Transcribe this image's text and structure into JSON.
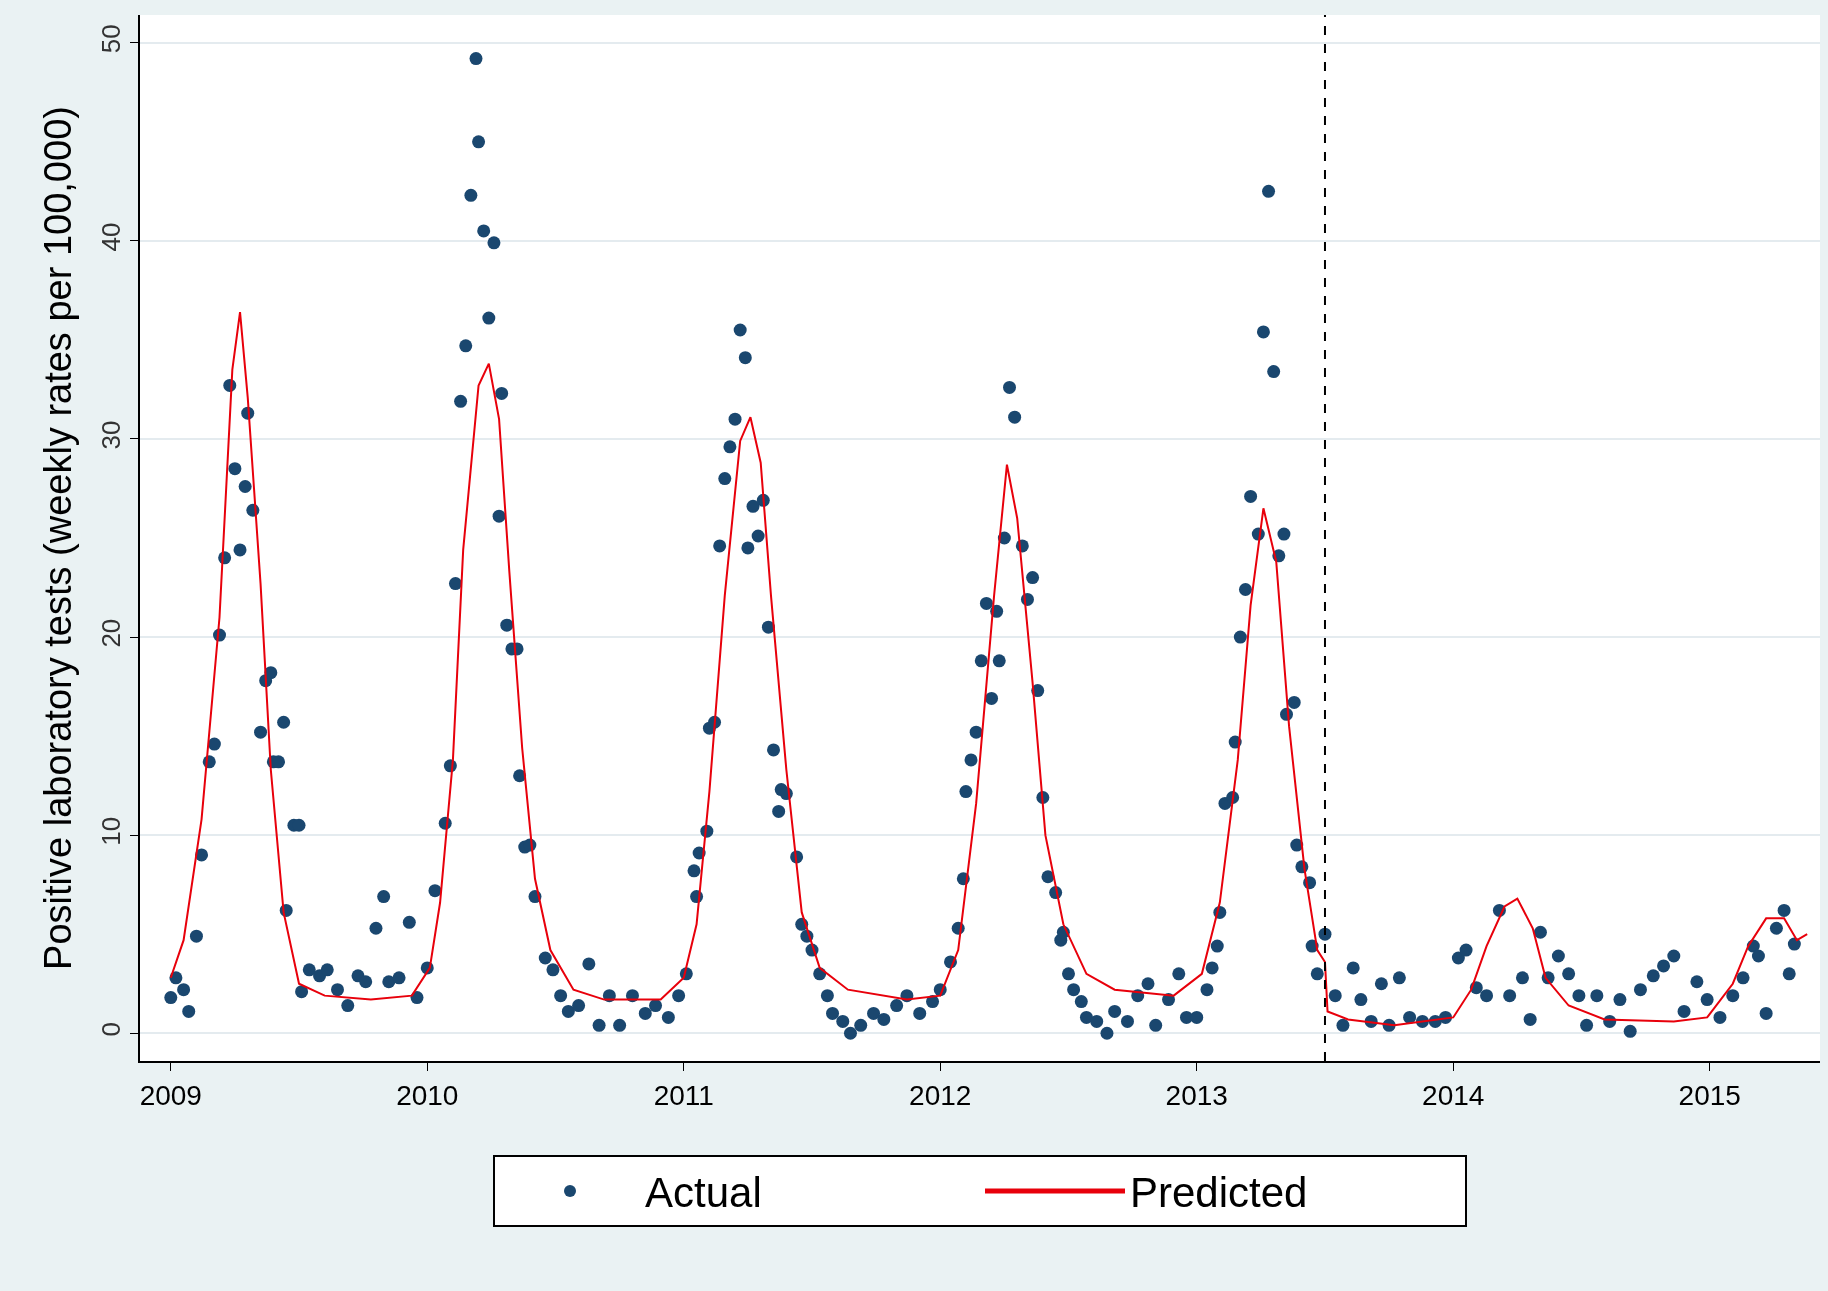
{
  "chart_data": {
    "type": "scatter",
    "ylabel": "Positive laboratory tests (weekly rates per 100,000)",
    "xlim": [
      2008.88,
      2015.43
    ],
    "xticks": [
      2009,
      2010,
      2011,
      2012,
      2013,
      2014,
      2015
    ],
    "ylim": [
      -1.4,
      51.4
    ],
    "yticks": [
      0,
      10,
      20,
      30,
      40,
      50
    ],
    "grid": "y",
    "legend": "bottom",
    "ref_lines": [
      {
        "axis": "x",
        "value": 2013.5,
        "color": "#000000",
        "line_style": "dashed"
      }
    ],
    "series": [
      {
        "name": "Actual",
        "marker": "circle",
        "color": "#1a476f",
        "x": [
          2009.0,
          2009.02,
          2009.05,
          2009.07,
          2009.1,
          2009.12,
          2009.15,
          2009.17,
          2009.19,
          2009.21,
          2009.23,
          2009.25,
          2009.27,
          2009.29,
          2009.3,
          2009.32,
          2009.35,
          2009.37,
          2009.39,
          2009.4,
          2009.42,
          2009.44,
          2009.48,
          2009.5,
          2009.45,
          2009.51,
          2009.54,
          2009.58,
          2009.61,
          2009.65,
          2009.69,
          2009.73,
          2009.76,
          2009.8,
          2009.83,
          2009.85,
          2009.89,
          2009.93,
          2009.96,
          2010.0,
          2010.03,
          2010.07,
          2010.09,
          2010.11,
          2010.13,
          2010.15,
          2010.17,
          2010.19,
          2010.2,
          2010.22,
          2010.24,
          2010.26,
          2010.28,
          2010.29,
          2010.31,
          2010.33,
          2010.35,
          2010.36,
          2010.38,
          2010.4,
          2010.42,
          2010.46,
          2010.49,
          2010.52,
          2010.55,
          2010.59,
          2010.63,
          2010.67,
          2010.71,
          2010.75,
          2010.8,
          2010.85,
          2010.89,
          2010.94,
          2010.98,
          2011.01,
          2011.04,
          2011.05,
          2011.06,
          2011.09,
          2011.1,
          2011.12,
          2011.14,
          2011.16,
          2011.18,
          2011.2,
          2011.22,
          2011.24,
          2011.25,
          2011.27,
          2011.29,
          2011.31,
          2011.33,
          2011.35,
          2011.37,
          2011.38,
          2011.4,
          2011.44,
          2011.46,
          2011.48,
          2011.5,
          2011.53,
          2011.56,
          2011.58,
          2011.62,
          2011.65,
          2011.69,
          2011.74,
          2011.78,
          2011.83,
          2011.87,
          2011.92,
          2011.97,
          2012.0,
          2012.04,
          2012.07,
          2012.09,
          2012.1,
          2012.12,
          2012.14,
          2012.16,
          2012.18,
          2012.2,
          2012.22,
          2012.23,
          2012.25,
          2012.27,
          2012.29,
          2012.32,
          2012.34,
          2012.36,
          2012.38,
          2012.4,
          2012.42,
          2012.45,
          2012.47,
          2012.48,
          2012.5,
          2012.52,
          2012.55,
          2012.57,
          2012.61,
          2012.65,
          2012.68,
          2012.73,
          2012.77,
          2012.81,
          2012.84,
          2012.89,
          2012.93,
          2012.96,
          2013.0,
          2013.04,
          2013.06,
          2013.08,
          2013.09,
          2013.11,
          2013.14,
          2013.15,
          2013.17,
          2013.19,
          2013.21,
          2013.24,
          2013.26,
          2013.28,
          2013.3,
          2013.32,
          2013.34,
          2013.35,
          2013.38,
          2013.39,
          2013.41,
          2013.44,
          2013.45,
          2013.47,
          2013.5,
          2013.54,
          2013.57,
          2013.61,
          2013.64,
          2013.68,
          2013.72,
          2013.75,
          2013.79,
          2013.83,
          2013.88,
          2013.93,
          2013.97,
          2014.02,
          2014.05,
          2014.09,
          2014.13,
          2014.18,
          2014.22,
          2014.27,
          2014.3,
          2014.34,
          2014.37,
          2014.41,
          2014.45,
          2014.49,
          2014.52,
          2014.56,
          2014.61,
          2014.65,
          2014.69,
          2014.73,
          2014.78,
          2014.82,
          2014.86,
          2014.9,
          2014.95,
          2014.99,
          2015.04,
          2015.09,
          2015.13,
          2015.17,
          2015.19,
          2015.22,
          2015.26,
          2015.29,
          2015.31,
          2015.33
        ],
        "values": [
          1.8,
          2.8,
          2.2,
          1.1,
          4.9,
          9.0,
          13.7,
          14.6,
          20.1,
          24.0,
          32.7,
          28.5,
          24.4,
          27.6,
          31.3,
          26.4,
          15.2,
          17.8,
          18.2,
          13.7,
          13.7,
          15.7,
          10.5,
          10.5,
          6.2,
          2.1,
          3.2,
          2.9,
          3.2,
          2.2,
          1.4,
          2.9,
          2.6,
          5.3,
          6.9,
          2.6,
          2.8,
          5.6,
          1.8,
          3.3,
          7.2,
          10.6,
          13.5,
          22.7,
          31.9,
          34.7,
          42.3,
          49.2,
          45.0,
          40.5,
          36.1,
          39.9,
          26.1,
          32.3,
          20.6,
          19.4,
          19.4,
          13.0,
          9.4,
          9.5,
          6.9,
          3.8,
          3.2,
          1.9,
          1.1,
          1.4,
          3.5,
          0.4,
          1.9,
          0.4,
          1.9,
          1.0,
          1.4,
          0.8,
          1.9,
          3.0,
          8.2,
          6.9,
          9.1,
          10.2,
          15.4,
          15.7,
          24.6,
          28.0,
          29.6,
          31.0,
          35.5,
          34.1,
          24.5,
          26.6,
          25.1,
          26.9,
          20.5,
          14.3,
          11.2,
          12.3,
          12.1,
          8.9,
          5.5,
          4.9,
          4.2,
          3.0,
          1.9,
          1.0,
          0.6,
          0.0,
          0.4,
          1.0,
          0.7,
          1.4,
          1.9,
          1.0,
          1.6,
          2.2,
          3.6,
          5.3,
          7.8,
          12.2,
          13.8,
          15.2,
          18.8,
          21.7,
          16.9,
          21.3,
          18.8,
          25.0,
          32.6,
          31.1,
          24.6,
          21.9,
          23.0,
          17.3,
          11.9,
          7.9,
          7.1,
          4.7,
          5.1,
          3.0,
          2.2,
          1.6,
          0.8,
          0.6,
          0.0,
          1.1,
          0.6,
          1.9,
          2.5,
          0.4,
          1.7,
          3.0,
          0.8,
          0.8,
          2.2,
          3.3,
          4.4,
          6.1,
          11.6,
          11.9,
          14.7,
          20.0,
          22.4,
          27.1,
          25.2,
          35.4,
          42.5,
          33.4,
          24.1,
          25.2,
          16.1,
          16.7,
          9.5,
          8.4,
          7.6,
          4.4,
          3.0,
          5.0,
          1.9,
          0.4,
          3.3,
          1.7,
          0.6,
          2.5,
          0.4,
          2.8,
          0.8,
          0.6,
          0.6,
          0.8,
          3.8,
          4.2,
          2.3,
          1.9,
          6.2,
          1.9,
          2.8,
          0.7,
          5.1,
          2.8,
          3.9,
          3.0,
          1.9,
          0.4,
          1.9,
          0.6,
          1.7,
          0.1,
          2.2,
          2.9,
          3.4,
          3.9,
          1.1,
          2.6,
          1.7,
          0.8,
          1.9,
          2.8,
          4.4,
          3.9,
          1.0,
          5.3,
          6.2,
          3.0,
          4.5
        ]
      },
      {
        "name": "Predicted",
        "type": "line",
        "marker": "none",
        "line_style": "solid",
        "color": "#e8000b",
        "x": [
          2009.0,
          2009.05,
          2009.12,
          2009.19,
          2009.24,
          2009.27,
          2009.3,
          2009.35,
          2009.39,
          2009.44,
          2009.5,
          2009.6,
          2009.78,
          2009.94,
          2010.01,
          2010.05,
          2010.1,
          2010.14,
          2010.2,
          2010.24,
          2010.28,
          2010.32,
          2010.37,
          2010.42,
          2010.48,
          2010.57,
          2010.69,
          2010.91,
          2011.0,
          2011.05,
          2011.1,
          2011.16,
          2011.22,
          2011.26,
          2011.3,
          2011.34,
          2011.4,
          2011.46,
          2011.53,
          2011.64,
          2011.87,
          2012.0,
          2012.07,
          2012.14,
          2012.21,
          2012.26,
          2012.3,
          2012.36,
          2012.41,
          2012.48,
          2012.57,
          2012.68,
          2012.91,
          2013.02,
          2013.09,
          2013.16,
          2013.21,
          2013.26,
          2013.31,
          2013.36,
          2013.42,
          2013.47,
          2013.5,
          2013.51,
          2013.59,
          2013.77,
          2014.0,
          2014.07,
          2014.13,
          2014.2,
          2014.25,
          2014.31,
          2014.36,
          2014.45,
          2014.59,
          2014.86,
          2014.99,
          2015.09,
          2015.15,
          2015.22,
          2015.29,
          2015.34,
          2015.38
        ],
        "values": [
          2.8,
          4.7,
          10.8,
          21.0,
          33.5,
          36.4,
          32.1,
          22.7,
          13.3,
          6.1,
          2.5,
          1.9,
          1.7,
          1.9,
          3.3,
          6.6,
          13.8,
          24.4,
          32.7,
          33.8,
          31.0,
          23.3,
          14.4,
          7.8,
          4.2,
          2.2,
          1.7,
          1.7,
          2.8,
          5.5,
          12.2,
          22.1,
          29.9,
          31.1,
          28.8,
          22.1,
          13.3,
          6.1,
          3.3,
          2.2,
          1.7,
          1.9,
          4.2,
          11.6,
          22.1,
          28.7,
          26.0,
          17.7,
          10.0,
          5.5,
          3.0,
          2.2,
          1.9,
          3.0,
          6.6,
          13.8,
          21.6,
          26.5,
          23.8,
          15.5,
          8.3,
          4.2,
          3.6,
          1.1,
          0.7,
          0.4,
          0.8,
          2.2,
          4.4,
          6.4,
          6.8,
          5.3,
          2.8,
          1.4,
          0.7,
          0.6,
          0.8,
          2.5,
          4.4,
          5.8,
          5.8,
          4.7,
          5.0
        ]
      }
    ]
  }
}
